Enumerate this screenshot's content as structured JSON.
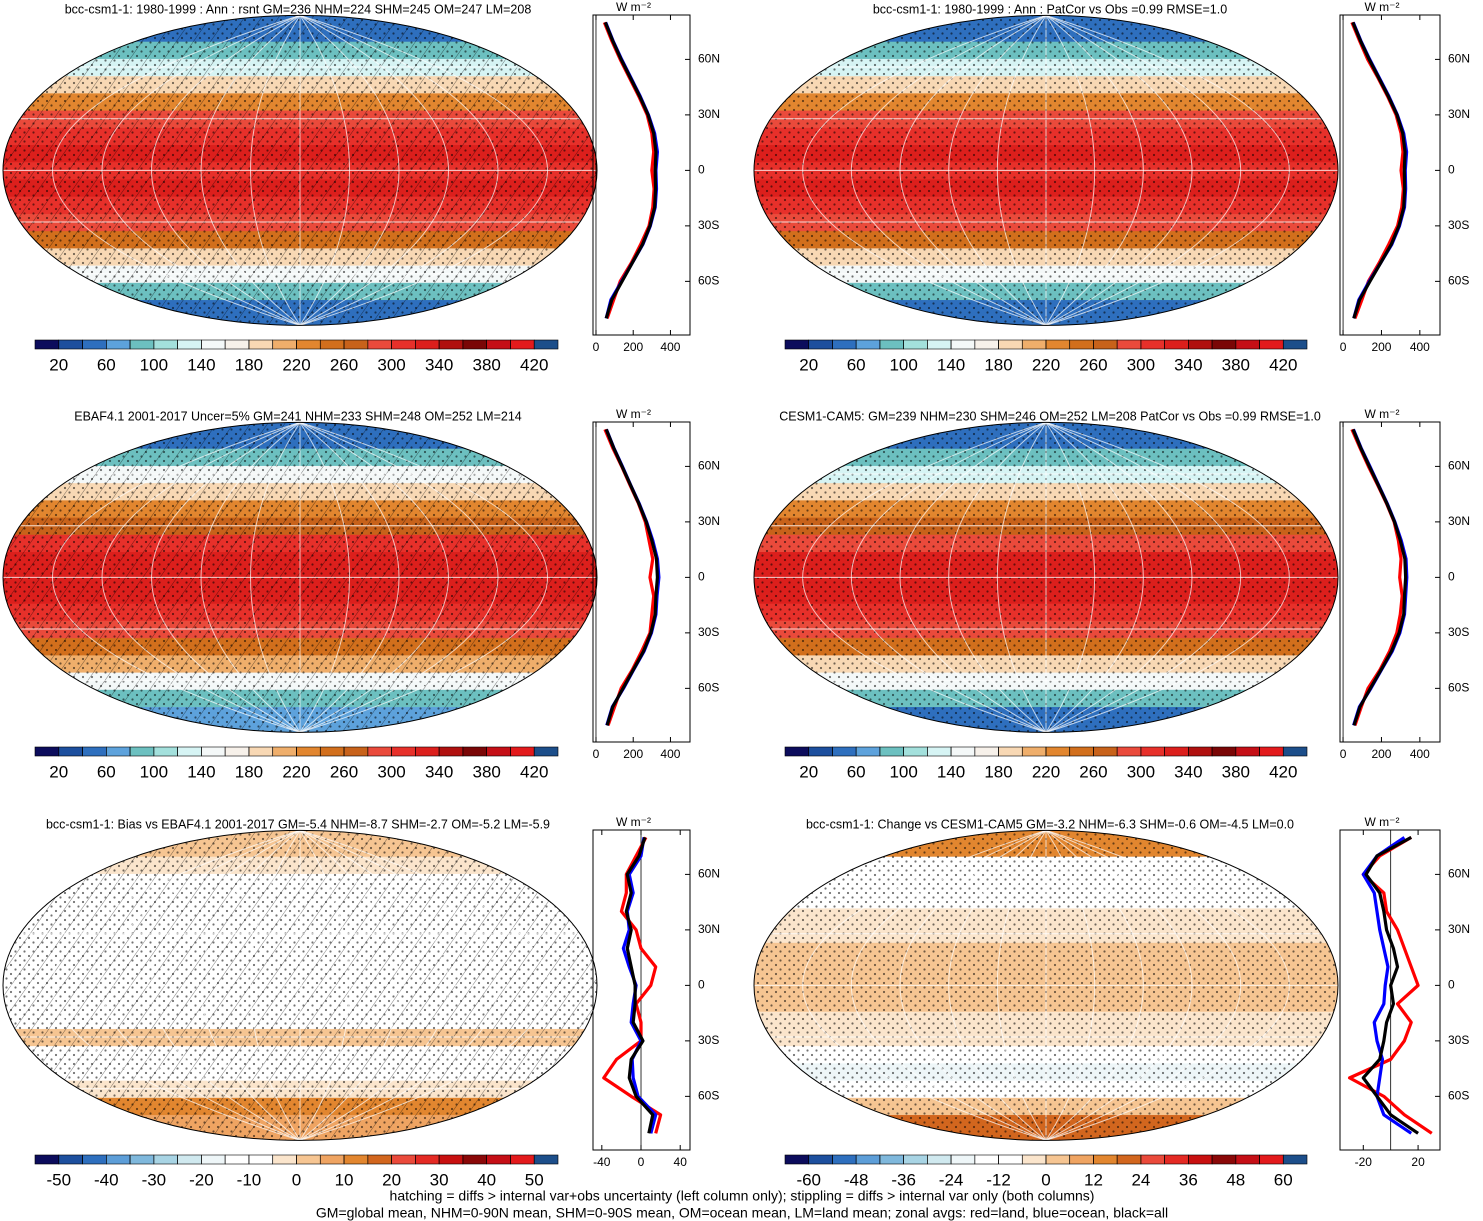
{
  "chart_data": [
    {
      "type": "map",
      "title": "bcc-csm1-1: 1980-1999 : Ann : rsnt GM=236 NHM=224 SHM=245 OM=247 LM=208",
      "hatching": true,
      "lat": [
        -80,
        -70,
        -60,
        -50,
        -40,
        -30,
        -20,
        -10,
        0,
        10,
        20,
        30,
        40,
        50,
        60,
        70,
        80
      ],
      "series": [
        {
          "color": "#ff0000",
          "values": [
            60,
            95,
            130,
            190,
            240,
            285,
            305,
            312,
            300,
            310,
            300,
            275,
            230,
            180,
            130,
            85,
            45
          ]
        },
        {
          "color": "#0000ff",
          "values": [
            55,
            80,
            138,
            195,
            252,
            292,
            318,
            325,
            322,
            330,
            315,
            282,
            238,
            188,
            138,
            92,
            52
          ]
        },
        {
          "color": "#000000",
          "values": [
            55,
            85,
            140,
            195,
            250,
            290,
            315,
            320,
            318,
            322,
            310,
            280,
            235,
            185,
            135,
            90,
            50
          ]
        }
      ],
      "xlabel": "W m⁻²",
      "xlim": [
        -16,
        505
      ],
      "xticks": [
        0,
        200,
        400
      ],
      "ylim": [
        -89,
        84
      ],
      "yticks": [
        {
          "value": -60,
          "label": "60S"
        },
        {
          "value": -30,
          "label": "30S"
        },
        0,
        {
          "value": 30,
          "label": "30N"
        },
        {
          "value": 60,
          "label": "60N"
        }
      ],
      "cbar_levels": [
        20,
        40,
        60,
        80,
        100,
        120,
        140,
        160,
        180,
        200,
        220,
        240,
        260,
        280,
        300,
        320,
        340,
        360,
        380,
        400,
        420
      ],
      "cbar_ticks": [
        20,
        60,
        100,
        140,
        180,
        220,
        260,
        300,
        340,
        380,
        420
      ],
      "cbar_colors": [
        "#0c0c5c",
        "#1d4f9e",
        "#2e6fbe",
        "#5da2dc",
        "#6cc0c0",
        "#a3e0dc",
        "#d6f4f4",
        "#f4f8f8",
        "#f7f1ea",
        "#f8d8b4",
        "#efae6b",
        "#e2862f",
        "#d26f1c",
        "#c8621a",
        "#ea4a3b",
        "#e7302a",
        "#dc1f1c",
        "#b0100f",
        "#7a0606",
        "#c50f16",
        "#e31a1c",
        "#1c4e8a"
      ]
    },
    {
      "type": "map",
      "title": "bcc-csm1-1: 1980-1999 : Ann : PatCor vs Obs =0.99 RMSE=1.0",
      "hatching": false,
      "lat": [
        -80,
        -70,
        -60,
        -50,
        -40,
        -30,
        -20,
        -10,
        0,
        10,
        20,
        30,
        40,
        50,
        60,
        70,
        80
      ],
      "series": [
        {
          "color": "#ff0000",
          "values": [
            62,
            98,
            132,
            188,
            238,
            284,
            306,
            314,
            302,
            312,
            302,
            276,
            232,
            182,
            128,
            86,
            46
          ]
        },
        {
          "color": "#0000ff",
          "values": [
            56,
            82,
            136,
            196,
            254,
            294,
            320,
            326,
            324,
            331,
            316,
            283,
            239,
            189,
            139,
            93,
            53
          ]
        },
        {
          "color": "#000000",
          "values": [
            56,
            86,
            140,
            196,
            251,
            291,
            316,
            321,
            319,
            323,
            311,
            281,
            236,
            186,
            136,
            91,
            51
          ]
        }
      ],
      "xlabel": "W m⁻²",
      "xlim": [
        -16,
        505
      ],
      "xticks": [
        0,
        200,
        400
      ],
      "ylim": [
        -89,
        84
      ],
      "yticks": [
        {
          "value": -60,
          "label": "60S"
        },
        {
          "value": -30,
          "label": "30S"
        },
        0,
        {
          "value": 30,
          "label": "30N"
        },
        {
          "value": 60,
          "label": "60N"
        }
      ],
      "cbar_levels": [
        20,
        40,
        60,
        80,
        100,
        120,
        140,
        160,
        180,
        200,
        220,
        240,
        260,
        280,
        300,
        320,
        340,
        360,
        380,
        400,
        420
      ],
      "cbar_ticks": [
        20,
        60,
        100,
        140,
        180,
        220,
        260,
        300,
        340,
        380,
        420
      ],
      "cbar_colors": [
        "#0c0c5c",
        "#1d4f9e",
        "#2e6fbe",
        "#5da2dc",
        "#6cc0c0",
        "#a3e0dc",
        "#d6f4f4",
        "#f4f8f8",
        "#f7f1ea",
        "#f8d8b4",
        "#efae6b",
        "#e2862f",
        "#d26f1c",
        "#c8621a",
        "#ea4a3b",
        "#e7302a",
        "#dc1f1c",
        "#b0100f",
        "#7a0606",
        "#c50f16",
        "#e31a1c",
        "#1c4e8a"
      ]
    },
    {
      "type": "map",
      "title": "EBAF4.1 2001-2017 Uncer=5% GM=241 NHM=233 SHM=248 OM=252 LM=214",
      "hatching": true,
      "lat": [
        -80,
        -70,
        -60,
        -50,
        -40,
        -30,
        -20,
        -10,
        0,
        10,
        20,
        30,
        40,
        50,
        60,
        70,
        80
      ],
      "series": [
        {
          "color": "#ff0000",
          "values": [
            65,
            100,
            135,
            195,
            245,
            290,
            300,
            310,
            290,
            305,
            285,
            265,
            228,
            182,
            138,
            90,
            48
          ]
        },
        {
          "color": "#0000ff",
          "values": [
            58,
            88,
            148,
            202,
            258,
            298,
            322,
            328,
            338,
            330,
            305,
            272,
            232,
            186,
            142,
            96,
            56
          ]
        },
        {
          "color": "#000000",
          "values": [
            60,
            90,
            145,
            200,
            255,
            295,
            318,
            322,
            330,
            325,
            300,
            270,
            230,
            185,
            140,
            95,
            55
          ]
        }
      ],
      "xlabel": "W m⁻²",
      "xlim": [
        -16,
        505
      ],
      "xticks": [
        0,
        200,
        400
      ],
      "ylim": [
        -89,
        84
      ],
      "yticks": [
        {
          "value": -60,
          "label": "60S"
        },
        {
          "value": -30,
          "label": "30S"
        },
        0,
        {
          "value": 30,
          "label": "30N"
        },
        {
          "value": 60,
          "label": "60N"
        }
      ],
      "cbar_levels": [
        20,
        40,
        60,
        80,
        100,
        120,
        140,
        160,
        180,
        200,
        220,
        240,
        260,
        280,
        300,
        320,
        340,
        360,
        380,
        400,
        420
      ],
      "cbar_ticks": [
        20,
        60,
        100,
        140,
        180,
        220,
        260,
        300,
        340,
        380,
        420
      ],
      "cbar_colors": [
        "#0c0c5c",
        "#1d4f9e",
        "#2e6fbe",
        "#5da2dc",
        "#6cc0c0",
        "#a3e0dc",
        "#d6f4f4",
        "#f4f8f8",
        "#f7f1ea",
        "#f8d8b4",
        "#efae6b",
        "#e2862f",
        "#d26f1c",
        "#c8621a",
        "#ea4a3b",
        "#e7302a",
        "#dc1f1c",
        "#b0100f",
        "#7a0606",
        "#c50f16",
        "#e31a1c",
        "#1c4e8a"
      ]
    },
    {
      "type": "map",
      "title": "CESM1-CAM5: GM=239 NHM=230 SHM=246 OM=252 LM=208 PatCor vs Obs =0.99 RMSE=1.0",
      "hatching": false,
      "lat": [
        -80,
        -70,
        -60,
        -50,
        -40,
        -30,
        -20,
        -10,
        0,
        10,
        20,
        30,
        40,
        50,
        60,
        70,
        80
      ],
      "series": [
        {
          "color": "#ff0000",
          "values": [
            62,
            95,
            130,
            192,
            242,
            280,
            298,
            308,
            295,
            302,
            288,
            266,
            226,
            180,
            132,
            88,
            46
          ]
        },
        {
          "color": "#0000ff",
          "values": [
            55,
            85,
            145,
            200,
            256,
            296,
            320,
            326,
            332,
            328,
            303,
            270,
            230,
            185,
            140,
            94,
            54
          ]
        },
        {
          "color": "#000000",
          "values": [
            57,
            88,
            142,
            198,
            252,
            292,
            316,
            320,
            326,
            322,
            298,
            268,
            228,
            183,
            137,
            92,
            52
          ]
        }
      ],
      "xlabel": "W m⁻²",
      "xlim": [
        -16,
        505
      ],
      "xticks": [
        0,
        200,
        400
      ],
      "ylim": [
        -89,
        84
      ],
      "yticks": [
        {
          "value": -60,
          "label": "60S"
        },
        {
          "value": -30,
          "label": "30S"
        },
        0,
        {
          "value": 30,
          "label": "30N"
        },
        {
          "value": 60,
          "label": "60N"
        }
      ],
      "cbar_levels": [
        20,
        40,
        60,
        80,
        100,
        120,
        140,
        160,
        180,
        200,
        220,
        240,
        260,
        280,
        300,
        320,
        340,
        360,
        380,
        400,
        420
      ],
      "cbar_ticks": [
        20,
        60,
        100,
        140,
        180,
        220,
        260,
        300,
        340,
        380,
        420
      ],
      "cbar_colors": [
        "#0c0c5c",
        "#1d4f9e",
        "#2e6fbe",
        "#5da2dc",
        "#6cc0c0",
        "#a3e0dc",
        "#d6f4f4",
        "#f4f8f8",
        "#f7f1ea",
        "#f8d8b4",
        "#efae6b",
        "#e2862f",
        "#d26f1c",
        "#c8621a",
        "#ea4a3b",
        "#e7302a",
        "#dc1f1c",
        "#b0100f",
        "#7a0606",
        "#c50f16",
        "#e31a1c",
        "#1c4e8a"
      ]
    },
    {
      "type": "map",
      "title": "bcc-csm1-1: Bias vs EBAF4.1 2001-2017 GM=-5.4 NHM=-8.7 SHM=-2.7 OM=-5.2 LM=-5.9",
      "hatching": true,
      "lat": [
        -80,
        -70,
        -60,
        -50,
        -40,
        -30,
        -20,
        -10,
        0,
        10,
        20,
        30,
        40,
        50,
        60,
        70,
        80
      ],
      "series": [
        {
          "color": "#ff0000",
          "values": [
            15,
            20,
            -10,
            -38,
            -25,
            0,
            0,
            -5,
            10,
            15,
            0,
            -5,
            -20,
            -15,
            -15,
            -5,
            5
          ]
        },
        {
          "color": "#0000ff",
          "values": [
            10,
            15,
            -3,
            -8,
            -9,
            0,
            -10,
            -8,
            -5,
            -12,
            -18,
            -12,
            -14,
            -8,
            -12,
            0,
            3
          ]
        },
        {
          "color": "#000000",
          "values": [
            8,
            12,
            -5,
            -12,
            -10,
            2,
            -8,
            -6,
            -6,
            -10,
            -14,
            -10,
            -15,
            -10,
            -14,
            -2,
            4
          ]
        }
      ],
      "xlabel": "W m⁻²",
      "xlim": [
        -49,
        50
      ],
      "xticks": [
        -40,
        0,
        40
      ],
      "ylim": [
        -89,
        84
      ],
      "yticks": [
        {
          "value": -60,
          "label": "60S"
        },
        {
          "value": -30,
          "label": "30S"
        },
        0,
        {
          "value": 30,
          "label": "30N"
        },
        {
          "value": 60,
          "label": "60N"
        }
      ],
      "cbar_levels": [
        -50,
        -45,
        -40,
        -35,
        -30,
        -25,
        -20,
        -15,
        -10,
        -5,
        0,
        5,
        10,
        15,
        20,
        25,
        30,
        35,
        40,
        45,
        50
      ],
      "cbar_ticks": [
        -50,
        -40,
        -30,
        -20,
        -10,
        0,
        10,
        20,
        30,
        40,
        50
      ],
      "cbar_colors": [
        "#0c0c5c",
        "#1d4f9e",
        "#2e6fbe",
        "#5d9ed8",
        "#7fb8dc",
        "#a8d4e4",
        "#d0e9ef",
        "#eef6f8",
        "#ffffff",
        "#ffffff",
        "#fbe5cc",
        "#f6c592",
        "#efa462",
        "#e2862f",
        "#d2661e",
        "#ea4a3b",
        "#e42a24",
        "#c81010",
        "#8a0808",
        "#c50f16",
        "#e31a1c",
        "#1c4e8a"
      ]
    },
    {
      "type": "map",
      "title": "bcc-csm1-1: Change vs CESM1-CAM5 GM=-3.2 NHM=-6.3 SHM=-0.6 OM=-4.5 LM=0.0",
      "hatching": false,
      "lat": [
        -80,
        -70,
        -60,
        -50,
        -40,
        -30,
        -20,
        -10,
        0,
        10,
        20,
        30,
        40,
        50,
        60,
        70,
        80
      ],
      "series": [
        {
          "color": "#ff0000",
          "values": [
            30,
            10,
            -5,
            -30,
            0,
            10,
            15,
            5,
            20,
            15,
            10,
            5,
            -3,
            -5,
            -20,
            -8,
            15
          ]
        },
        {
          "color": "#0000ff",
          "values": [
            15,
            -5,
            -10,
            -8,
            -6,
            -10,
            -12,
            -5,
            -4,
            -2,
            -5,
            -8,
            -10,
            -12,
            -20,
            -10,
            10
          ]
        },
        {
          "color": "#000000",
          "values": [
            20,
            0,
            -10,
            -20,
            -8,
            -5,
            -3,
            2,
            0,
            5,
            2,
            -3,
            -5,
            -8,
            -18,
            -10,
            15
          ]
        }
      ],
      "xlabel": "W m⁻²",
      "xlim": [
        -37,
        36
      ],
      "xticks": [
        -20,
        20
      ],
      "ylim": [
        -89,
        84
      ],
      "yticks": [
        {
          "value": -60,
          "label": "60S"
        },
        {
          "value": -30,
          "label": "30S"
        },
        0,
        {
          "value": 30,
          "label": "30N"
        },
        {
          "value": 60,
          "label": "60N"
        }
      ],
      "cbar_levels": [
        -60,
        -54,
        -48,
        -42,
        -36,
        -30,
        -24,
        -18,
        -12,
        -6,
        0,
        6,
        12,
        18,
        24,
        30,
        36,
        42,
        48,
        54,
        60
      ],
      "cbar_ticks": [
        -60,
        -48,
        -36,
        -24,
        -12,
        0,
        12,
        24,
        36,
        48,
        60
      ],
      "cbar_colors": [
        "#0c0c5c",
        "#1d4f9e",
        "#2e6fbe",
        "#5d9ed8",
        "#7fb8dc",
        "#a8d4e4",
        "#d0e9ef",
        "#eef6f8",
        "#ffffff",
        "#ffffff",
        "#fbe5cc",
        "#f6c592",
        "#efa462",
        "#e2862f",
        "#d2661e",
        "#ea4a3b",
        "#e42a24",
        "#c81010",
        "#8a0808",
        "#c50f16",
        "#e31a1c",
        "#1c4e8a"
      ]
    }
  ],
  "notes": [
    "hatching = diffs > internal var+obs uncertainty (left column only); stippling = diffs > internal var only (both columns)",
    "GM=global mean, NHM=0-90N mean, SHM=0-90S mean, OM=ocean mean, LM=land mean; zonal avgs: red=land, blue=ocean, black=all"
  ]
}
